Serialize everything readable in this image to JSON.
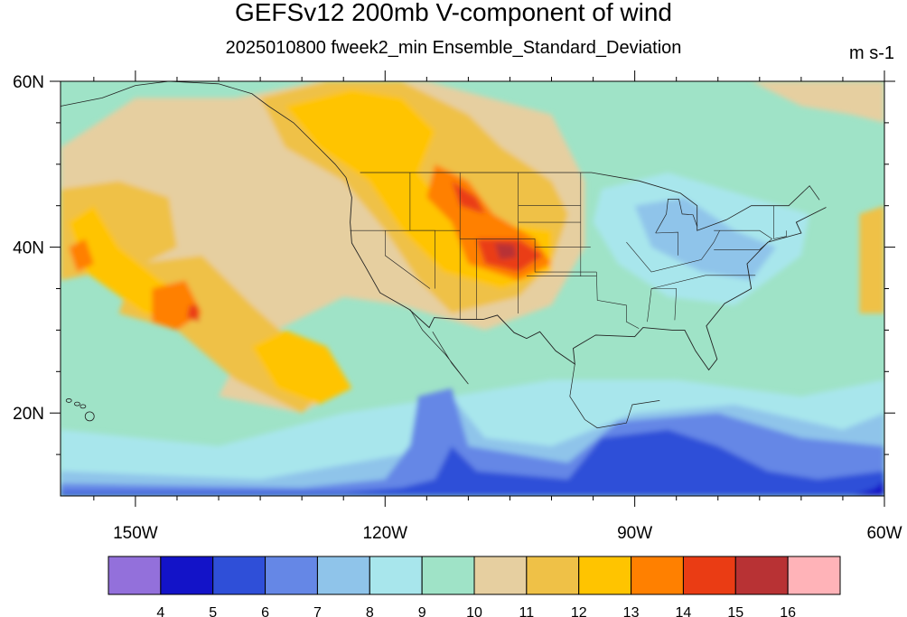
{
  "chart_data": {
    "type": "heatmap",
    "title": "GEFSv12 200mb V-component of wind",
    "subtitle": "2025010800 fweek2_min Ensemble_Standard_Deviation",
    "units": "m s-1",
    "x_ticks": [
      "150W",
      "120W",
      "90W",
      "60W"
    ],
    "x_tick_values": [
      -150,
      -120,
      -90,
      -60
    ],
    "y_ticks": [
      "60N",
      "40N",
      "20N"
    ],
    "y_tick_values": [
      60,
      40,
      20
    ],
    "xlim": [
      -159,
      -60
    ],
    "ylim": [
      10,
      60
    ],
    "colorbar": {
      "levels": [
        4,
        5,
        6,
        7,
        8,
        9,
        10,
        11,
        12,
        13,
        14,
        15,
        16
      ],
      "colors": [
        "#9370db",
        "#1313c8",
        "#2f4fd8",
        "#6587e6",
        "#8fc4ea",
        "#a8e6ec",
        "#9fe3c7",
        "#e6cfa0",
        "#efc147",
        "#ffc400",
        "#ff8000",
        "#ea3c14",
        "#b83234",
        "#ffb3b8"
      ]
    },
    "regions": [
      {
        "value": 10.5,
        "lon": -150,
        "lat": 50
      },
      {
        "value": 12.5,
        "lon": -128,
        "lat": 55
      },
      {
        "value": 9.5,
        "lon": -140,
        "lat": 40
      },
      {
        "value": 13.5,
        "lon": -146,
        "lat": 33
      },
      {
        "value": 14.5,
        "lon": -143,
        "lat": 32
      },
      {
        "value": 12.5,
        "lon": -132,
        "lat": 25
      },
      {
        "value": 14.5,
        "lon": -106,
        "lat": 40
      },
      {
        "value": 15.5,
        "lon": -105,
        "lat": 39
      },
      {
        "value": 14.5,
        "lon": -112,
        "lat": 46
      },
      {
        "value": 8.5,
        "lon": -85,
        "lat": 42
      },
      {
        "value": 7.5,
        "lon": -78,
        "lat": 38
      },
      {
        "value": 6.5,
        "lon": -115,
        "lat": 20
      },
      {
        "value": 5.5,
        "lon": -85,
        "lat": 14
      },
      {
        "value": 5.5,
        "lon": -113,
        "lat": 13
      },
      {
        "value": 4.5,
        "lon": -61,
        "lat": 11
      },
      {
        "value": 11.5,
        "lon": -100,
        "lat": 45
      },
      {
        "value": 12.5,
        "lon": -60,
        "lat": 38
      }
    ]
  }
}
